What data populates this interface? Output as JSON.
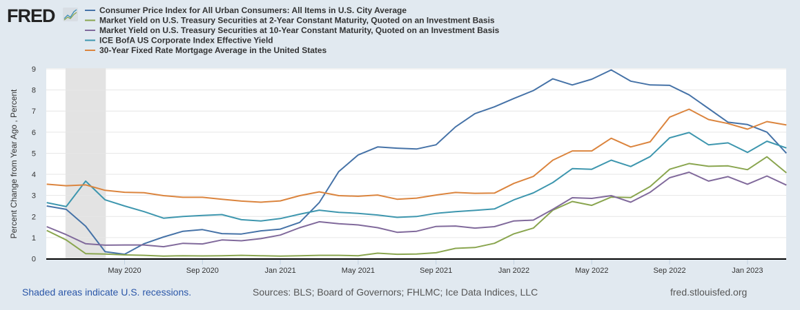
{
  "logo": "FRED",
  "footer": {
    "recession_note": "Shaded areas indicate U.S. recessions.",
    "sources": "Sources: BLS; Board of Governors; FHLMC; Ice Data Indices, LLC",
    "site": "fred.stlouisfed.org"
  },
  "chart_data": {
    "type": "line",
    "title": "",
    "xlabel": "",
    "ylabel": "Percent Change from Year Ago , Percent",
    "ylim": [
      0,
      9
    ],
    "yticks": [
      "0",
      "1",
      "2",
      "3",
      "4",
      "5",
      "6",
      "7",
      "8",
      "9"
    ],
    "grid": true,
    "legend_position": "top",
    "x_start": "Jan 2020",
    "x_end": "Mar 2023",
    "x_frequency": "monthly",
    "xticks": [
      {
        "label": "May 2020",
        "month": 4
      },
      {
        "label": "Sep 2020",
        "month": 8
      },
      {
        "label": "Jan 2021",
        "month": 12
      },
      {
        "label": "May 2021",
        "month": 16
      },
      {
        "label": "Sep 2021",
        "month": 20
      },
      {
        "label": "Jan 2022",
        "month": 24
      },
      {
        "label": "May 2022",
        "month": 28
      },
      {
        "label": "Sep 2022",
        "month": 32
      },
      {
        "label": "Jan 2023",
        "month": 36
      }
    ],
    "recessions": [
      {
        "start_month": 1,
        "end_month": 3
      }
    ],
    "series": [
      {
        "name": "Consumer Price Index for All Urban Consumers: All Items in U.S. City Average",
        "color": "#4572a7",
        "values": [
          2.5,
          2.34,
          1.54,
          0.33,
          0.21,
          0.71,
          1.03,
          1.3,
          1.38,
          1.19,
          1.17,
          1.32,
          1.4,
          1.72,
          2.66,
          4.13,
          4.92,
          5.3,
          5.24,
          5.2,
          5.4,
          6.25,
          6.88,
          7.2,
          7.6,
          7.97,
          8.53,
          8.24,
          8.51,
          8.95,
          8.42,
          8.24,
          8.22,
          7.77,
          7.12,
          6.47,
          6.36,
          6.0,
          5.0
        ]
      },
      {
        "name": "Market Yield on U.S. Treasury Securities at 2-Year Constant Maturity, Quoted on an Investment Basis",
        "color": "#89a54e",
        "values": [
          1.34,
          0.89,
          0.24,
          0.22,
          0.18,
          0.16,
          0.12,
          0.14,
          0.13,
          0.14,
          0.16,
          0.14,
          0.12,
          0.14,
          0.16,
          0.16,
          0.14,
          0.26,
          0.21,
          0.22,
          0.28,
          0.49,
          0.53,
          0.73,
          1.18,
          1.45,
          2.3,
          2.71,
          2.53,
          2.92,
          2.9,
          3.42,
          4.24,
          4.51,
          4.38,
          4.4,
          4.22,
          4.83,
          4.07
        ]
      },
      {
        "name": "Market Yield on U.S. Treasury Securities at 10-Year Constant Maturity, Quoted on an Investment Basis",
        "color": "#80699b",
        "values": [
          1.52,
          1.14,
          0.71,
          0.64,
          0.65,
          0.65,
          0.57,
          0.73,
          0.7,
          0.89,
          0.85,
          0.95,
          1.12,
          1.47,
          1.75,
          1.66,
          1.6,
          1.47,
          1.25,
          1.3,
          1.53,
          1.55,
          1.45,
          1.52,
          1.79,
          1.83,
          2.34,
          2.89,
          2.86,
          2.99,
          2.68,
          3.15,
          3.84,
          4.1,
          3.68,
          3.89,
          3.53,
          3.92,
          3.49
        ]
      },
      {
        "name": "ICE BofA US Corporate Index Effective Yield",
        "color": "#3d96ae",
        "values": [
          2.66,
          2.47,
          3.68,
          2.79,
          2.5,
          2.23,
          1.92,
          2.0,
          2.05,
          2.09,
          1.85,
          1.79,
          1.9,
          2.11,
          2.3,
          2.2,
          2.15,
          2.07,
          1.96,
          2.0,
          2.15,
          2.23,
          2.29,
          2.36,
          2.79,
          3.12,
          3.61,
          4.27,
          4.24,
          4.67,
          4.37,
          4.84,
          5.73,
          5.98,
          5.4,
          5.49,
          5.04,
          5.57,
          5.25
        ]
      },
      {
        "name": "30-Year Fixed Rate Mortgage Average in the United States",
        "color": "#db843d",
        "values": [
          3.53,
          3.46,
          3.5,
          3.24,
          3.15,
          3.13,
          2.99,
          2.91,
          2.91,
          2.82,
          2.73,
          2.68,
          2.74,
          2.99,
          3.17,
          2.99,
          2.96,
          3.02,
          2.82,
          2.87,
          3.02,
          3.14,
          3.1,
          3.11,
          3.57,
          3.9,
          4.67,
          5.11,
          5.11,
          5.71,
          5.3,
          5.54,
          6.71,
          7.09,
          6.6,
          6.41,
          6.14,
          6.5,
          6.34
        ]
      }
    ]
  }
}
